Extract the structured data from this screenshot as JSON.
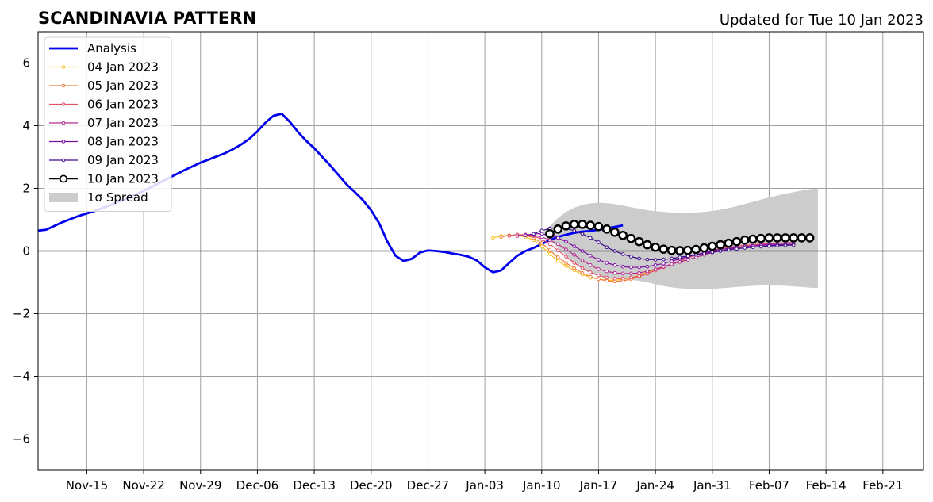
{
  "chart_data": {
    "type": "line",
    "title": "SCANDINAVIA PATTERN",
    "subtitle": "Updated for Tue 10 Jan 2023",
    "xlabel": "",
    "ylabel": "",
    "xlim": [
      "2022-11-09",
      "2023-02-26"
    ],
    "ylim": [
      -7,
      7
    ],
    "grid": true,
    "legend_position": "top-left",
    "x_ticks": [
      "2022-11-15",
      "2022-11-22",
      "2022-11-29",
      "2022-12-06",
      "2022-12-13",
      "2022-12-20",
      "2022-12-27",
      "2023-01-03",
      "2023-01-10",
      "2023-01-17",
      "2023-01-24",
      "2023-01-31",
      "2023-02-07",
      "2023-02-14",
      "2023-02-21"
    ],
    "x_tick_labels": [
      "Nov-15",
      "Nov-22",
      "Nov-29",
      "Dec-06",
      "Dec-13",
      "Dec-20",
      "Dec-27",
      "Jan-03",
      "Jan-10",
      "Jan-17",
      "Jan-24",
      "Jan-31",
      "Feb-07",
      "Feb-14",
      "Feb-21"
    ],
    "y_ticks": [
      -6,
      -4,
      -2,
      0,
      2,
      4,
      6
    ],
    "y_tick_labels": [
      "−6",
      "−4",
      "−2",
      "0",
      "2",
      "4",
      "6"
    ],
    "start_date": "2022-11-09",
    "analysis": {
      "name": "Analysis",
      "color": "#0000ee",
      "values": [
        0.65,
        0.68,
        0.8,
        0.92,
        1.02,
        1.12,
        1.2,
        1.28,
        1.38,
        1.48,
        1.58,
        1.68,
        1.8,
        1.92,
        2.05,
        2.18,
        2.32,
        2.45,
        2.58,
        2.7,
        2.82,
        2.92,
        3.02,
        3.12,
        3.25,
        3.4,
        3.58,
        3.82,
        4.1,
        4.32,
        4.38,
        4.12,
        3.8,
        3.52,
        3.28,
        3.0,
        2.72,
        2.42,
        2.12,
        1.88,
        1.62,
        1.3,
        0.88,
        0.3,
        -0.15,
        -0.32,
        -0.25,
        -0.05,
        0.02,
        0.0,
        -0.03,
        -0.08,
        -0.12,
        -0.18,
        -0.3,
        -0.52,
        -0.68,
        -0.62,
        -0.38,
        -0.15,
        0.0,
        0.1,
        0.22,
        0.35,
        0.45,
        0.52,
        0.58,
        0.62,
        0.64,
        0.68,
        0.72,
        0.77,
        0.82
      ]
    },
    "series": [
      {
        "name": "04 Jan 2023",
        "color": "#f5c020",
        "start_date": "2023-01-04",
        "values": [
          0.42,
          0.48,
          0.5,
          0.5,
          0.45,
          0.35,
          0.15,
          -0.1,
          -0.32,
          -0.48,
          -0.62,
          -0.75,
          -0.85,
          -0.9,
          -0.93,
          -0.93,
          -0.9,
          -0.85,
          -0.78,
          -0.68,
          -0.58
        ]
      },
      {
        "name": "05 Jan 2023",
        "color": "#f07e3a",
        "start_date": "2023-01-05",
        "values": [
          0.45,
          0.5,
          0.52,
          0.5,
          0.42,
          0.25,
          0.02,
          -0.2,
          -0.38,
          -0.55,
          -0.7,
          -0.82,
          -0.9,
          -0.95,
          -0.97,
          -0.95,
          -0.9,
          -0.82,
          -0.72,
          -0.62
        ]
      },
      {
        "name": "06 Jan 2023",
        "color": "#e04e68",
        "start_date": "2023-01-06",
        "values": [
          0.48,
          0.52,
          0.52,
          0.48,
          0.38,
          0.22,
          0.02,
          -0.18,
          -0.38,
          -0.55,
          -0.68,
          -0.78,
          -0.85,
          -0.88,
          -0.88,
          -0.85,
          -0.8,
          -0.72,
          -0.62,
          -0.52,
          -0.42,
          -0.32,
          -0.22,
          -0.12,
          -0.05,
          0.02,
          0.08,
          0.12,
          0.15,
          0.18,
          0.2,
          0.22,
          0.24,
          0.25,
          0.26,
          0.27
        ]
      },
      {
        "name": "07 Jan 2023",
        "color": "#b32a8e",
        "start_date": "2023-01-07",
        "values": [
          0.48,
          0.52,
          0.5,
          0.45,
          0.35,
          0.22,
          0.05,
          -0.12,
          -0.3,
          -0.45,
          -0.58,
          -0.65,
          -0.7,
          -0.72,
          -0.72,
          -0.7,
          -0.65,
          -0.58,
          -0.5,
          -0.42,
          -0.35,
          -0.28,
          -0.2,
          -0.12,
          -0.05,
          0.0,
          0.05,
          0.1,
          0.14,
          0.17,
          0.2,
          0.22,
          0.24,
          0.25,
          0.26
        ]
      },
      {
        "name": "08 Jan 2023",
        "color": "#7a10a0",
        "start_date": "2023-01-08",
        "values": [
          0.5,
          0.55,
          0.55,
          0.5,
          0.42,
          0.3,
          0.15,
          0.0,
          -0.15,
          -0.28,
          -0.38,
          -0.45,
          -0.5,
          -0.52,
          -0.52,
          -0.5,
          -0.45,
          -0.4,
          -0.32,
          -0.25,
          -0.18,
          -0.12,
          -0.06,
          0.0,
          0.05,
          0.08,
          0.11,
          0.14,
          0.16,
          0.18,
          0.19,
          0.2,
          0.21,
          0.22
        ]
      },
      {
        "name": "09 Jan 2023",
        "color": "#3c0a8c",
        "start_date": "2023-01-09",
        "values": [
          0.55,
          0.65,
          0.72,
          0.75,
          0.72,
          0.65,
          0.55,
          0.42,
          0.28,
          0.12,
          0.0,
          -0.1,
          -0.18,
          -0.24,
          -0.27,
          -0.28,
          -0.27,
          -0.24,
          -0.2,
          -0.16,
          -0.12,
          -0.08,
          -0.04,
          0.0,
          0.04,
          0.07,
          0.1,
          0.12,
          0.14,
          0.16,
          0.17,
          0.18,
          0.19
        ]
      },
      {
        "name": "10 Jan 2023",
        "color": "#000000",
        "start_date": "2023-01-11",
        "values": [
          0.55,
          0.7,
          0.8,
          0.85,
          0.85,
          0.82,
          0.78,
          0.7,
          0.6,
          0.5,
          0.4,
          0.3,
          0.2,
          0.12,
          0.06,
          0.02,
          0.01,
          0.02,
          0.05,
          0.1,
          0.15,
          0.2,
          0.25,
          0.3,
          0.35,
          0.38,
          0.4,
          0.42,
          0.42,
          0.42,
          0.42,
          0.42,
          0.42
        ]
      }
    ],
    "spread": {
      "name": "1σ Spread",
      "color": "#cccccc",
      "start_date": "2023-01-10",
      "upper": [
        0.55,
        0.8,
        1.05,
        1.25,
        1.38,
        1.47,
        1.52,
        1.54,
        1.53,
        1.5,
        1.45,
        1.4,
        1.35,
        1.3,
        1.27,
        1.25,
        1.23,
        1.22,
        1.22,
        1.23,
        1.25,
        1.28,
        1.32,
        1.37,
        1.43,
        1.5,
        1.57,
        1.64,
        1.71,
        1.77,
        1.83,
        1.88,
        1.93,
        1.97,
        2.0
      ],
      "lower": [
        0.55,
        0.35,
        0.1,
        -0.15,
        -0.38,
        -0.58,
        -0.72,
        -0.8,
        -0.85,
        -0.88,
        -0.9,
        -0.92,
        -0.95,
        -1.0,
        -1.06,
        -1.12,
        -1.16,
        -1.19,
        -1.21,
        -1.22,
        -1.22,
        -1.21,
        -1.19,
        -1.17,
        -1.15,
        -1.13,
        -1.11,
        -1.1,
        -1.09,
        -1.1,
        -1.11,
        -1.13,
        -1.15,
        -1.17,
        -1.18
      ]
    }
  }
}
